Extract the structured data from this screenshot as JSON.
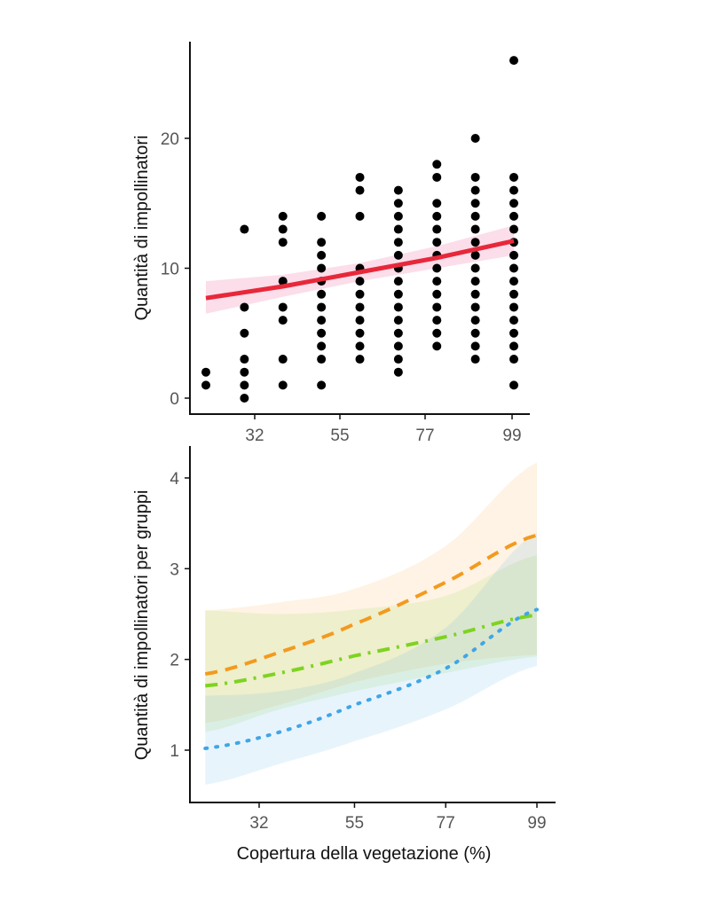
{
  "chart_data": [
    {
      "type": "scatter",
      "ylabel": "Quantità di impollinatori",
      "xlabel": "",
      "xticks": [
        32,
        55,
        77,
        99
      ],
      "yticks": [
        0,
        10,
        20
      ],
      "xlim": [
        15,
        103
      ],
      "ylim": [
        -1,
        27
      ],
      "grid": false,
      "colors": {
        "points": "#000000",
        "fit": "#e8283a",
        "ribbon": "#f9d3e3"
      },
      "points": [
        {
          "x": 19,
          "y": [
            1,
            2
          ]
        },
        {
          "x": 29,
          "y": [
            0,
            1,
            2,
            3,
            5,
            7,
            13
          ]
        },
        {
          "x": 39,
          "y": [
            1,
            3,
            6,
            7,
            9,
            12,
            13,
            14
          ]
        },
        {
          "x": 49,
          "y": [
            1,
            3,
            4,
            5,
            6,
            7,
            8,
            9,
            10,
            11,
            12,
            14
          ]
        },
        {
          "x": 59,
          "y": [
            3,
            4,
            5,
            6,
            7,
            8,
            9,
            10,
            14,
            16,
            17
          ]
        },
        {
          "x": 69,
          "y": [
            2,
            3,
            4,
            5,
            6,
            7,
            8,
            9,
            10,
            11,
            12,
            13,
            14,
            15,
            16
          ]
        },
        {
          "x": 79,
          "y": [
            4,
            5,
            6,
            7,
            8,
            9,
            10,
            11,
            12,
            13,
            14,
            15,
            17,
            18
          ]
        },
        {
          "x": 89,
          "y": [
            3,
            4,
            5,
            6,
            7,
            8,
            9,
            10,
            11,
            12,
            13,
            14,
            15,
            16,
            17,
            20
          ]
        },
        {
          "x": 99,
          "y": [
            1,
            3,
            4,
            5,
            6,
            7,
            8,
            9,
            10,
            11,
            12,
            13,
            14,
            15,
            16,
            17,
            26
          ]
        }
      ],
      "fit": {
        "x": [
          19,
          39,
          59,
          79,
          99
        ],
        "y": [
          7.7,
          8.6,
          9.7,
          10.8,
          12.1
        ],
        "lower": [
          6.5,
          7.8,
          9.0,
          10.0,
          11.0
        ],
        "upper": [
          9.0,
          9.5,
          10.4,
          11.7,
          13.3
        ]
      }
    },
    {
      "type": "line",
      "ylabel": "Quantità di impollinatori per gruppi",
      "xlabel": "Copertura della vegetazione (%)",
      "xticks": [
        32,
        55,
        77,
        99
      ],
      "yticks": [
        1,
        2,
        3,
        4
      ],
      "xlim": [
        16,
        104
      ],
      "ylim": [
        0.45,
        4.3
      ],
      "grid": false,
      "x": [
        19,
        37,
        55,
        77,
        99
      ],
      "series": [
        {
          "color": "#f39a1e",
          "dash": "dashed",
          "values": [
            1.84,
            2.08,
            2.39,
            2.85,
            3.37
          ],
          "lower": [
            1.3,
            1.5,
            1.75,
            1.95,
            2.05
          ],
          "upper": [
            2.54,
            2.63,
            2.78,
            3.25,
            4.17
          ]
        },
        {
          "color": "#7ed321",
          "dash": "dashdot",
          "values": [
            1.71,
            1.85,
            2.04,
            2.25,
            2.49
          ],
          "lower": [
            1.2,
            1.45,
            1.65,
            1.85,
            2.03
          ],
          "upper": [
            2.54,
            2.5,
            2.55,
            2.7,
            3.15
          ]
        },
        {
          "color": "#3fa6e8",
          "dash": "dotted",
          "values": [
            1.02,
            1.2,
            1.5,
            1.9,
            2.55
          ],
          "lower": [
            0.62,
            0.85,
            1.1,
            1.45,
            1.93
          ],
          "upper": [
            1.6,
            1.65,
            1.85,
            2.35,
            3.4
          ]
        }
      ]
    }
  ]
}
